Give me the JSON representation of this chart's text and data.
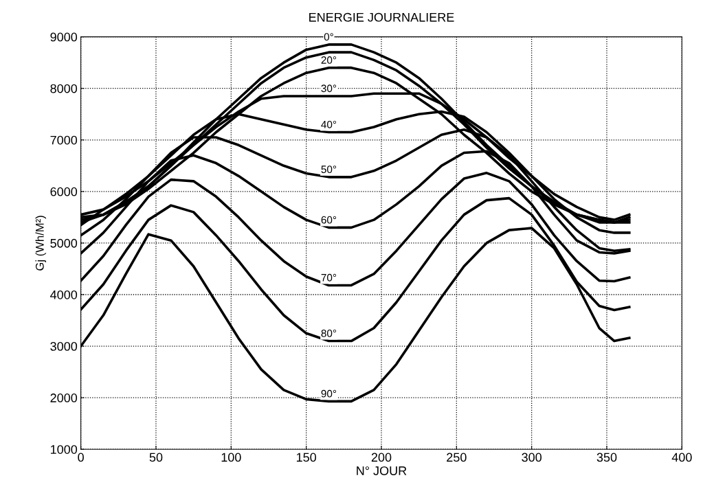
{
  "chart_data": {
    "type": "line",
    "title": "ENERGIE JOURNALIERE",
    "xlabel": "N° JOUR",
    "ylabel": "Gj (Wh/M²)",
    "x": [
      0,
      15,
      30,
      45,
      60,
      75,
      90,
      105,
      120,
      135,
      150,
      165,
      180,
      195,
      210,
      225,
      240,
      255,
      270,
      285,
      300,
      315,
      330,
      345,
      355,
      365
    ],
    "xlim": [
      0,
      400
    ],
    "xticks": [
      0,
      50,
      100,
      150,
      200,
      250,
      300,
      350,
      400
    ],
    "ylim": [
      1000,
      9000
    ],
    "yticks": [
      1000,
      2000,
      3000,
      4000,
      5000,
      6000,
      7000,
      8000,
      9000
    ],
    "grid": true,
    "legend": false,
    "marker": "none",
    "line_style": "solid",
    "series": [
      {
        "name": "0°",
        "color": "#000000",
        "values": [
          5400,
          5550,
          5800,
          6100,
          6500,
          6950,
          7400,
          7800,
          8200,
          8500,
          8750,
          8850,
          8850,
          8700,
          8500,
          8200,
          7800,
          7350,
          6900,
          6500,
          6100,
          5800,
          5550,
          5400,
          5400,
          5500
        ]
      },
      {
        "color": "#000000",
        "values": [
          5450,
          5550,
          5800,
          6100,
          6500,
          6900,
          7300,
          7700,
          8100,
          8400,
          8600,
          8700,
          8700,
          8550,
          8350,
          8050,
          7700,
          7300,
          6850,
          6450,
          6100,
          5750,
          5550,
          5450,
          5400,
          5450
        ]
      },
      {
        "name": "20°",
        "color": "#000000",
        "values": [
          5500,
          5550,
          5750,
          6050,
          6400,
          6750,
          7150,
          7500,
          7850,
          8100,
          8300,
          8400,
          8400,
          8300,
          8100,
          7800,
          7500,
          7100,
          6750,
          6350,
          6000,
          5750,
          5550,
          5450,
          5400,
          5400
        ]
      },
      {
        "name": "30°",
        "color": "#000000",
        "values": [
          5550,
          5650,
          5900,
          6200,
          6550,
          6900,
          7250,
          7550,
          7800,
          7850,
          7850,
          7850,
          7850,
          7900,
          7900,
          7900,
          7700,
          7400,
          7050,
          6650,
          6300,
          5950,
          5700,
          5500,
          5450,
          5550
        ]
      },
      {
        "name": "40°",
        "color": "#000000",
        "values": [
          5350,
          5650,
          5950,
          6300,
          6700,
          7100,
          7400,
          7500,
          7400,
          7300,
          7200,
          7150,
          7150,
          7250,
          7400,
          7500,
          7550,
          7450,
          7150,
          6750,
          6300,
          5850,
          5500,
          5250,
          5200,
          5200
        ]
      },
      {
        "name": "50°",
        "color": "#000000",
        "values": [
          5150,
          5450,
          5850,
          6300,
          6750,
          7050,
          7050,
          6900,
          6700,
          6500,
          6350,
          6280,
          6280,
          6400,
          6600,
          6850,
          7100,
          7200,
          7050,
          6700,
          6200,
          5700,
          5250,
          4900,
          4850,
          4880
        ]
      },
      {
        "name": "60°",
        "color": "#000000",
        "values": [
          4800,
          5200,
          5700,
          6200,
          6600,
          6700,
          6550,
          6300,
          6000,
          5700,
          5450,
          5300,
          5300,
          5450,
          5750,
          6100,
          6500,
          6750,
          6780,
          6550,
          6100,
          5550,
          5050,
          4820,
          4800,
          4850
        ]
      },
      {
        "name": "70°",
        "color": "#000000",
        "values": [
          4270,
          4750,
          5350,
          5900,
          6230,
          6200,
          5900,
          5500,
          5050,
          4650,
          4350,
          4180,
          4180,
          4400,
          4850,
          5350,
          5850,
          6250,
          6360,
          6200,
          5750,
          5150,
          4650,
          4270,
          4260,
          4330
        ]
      },
      {
        "name": "80°",
        "color": "#000000",
        "values": [
          3710,
          4200,
          4850,
          5450,
          5730,
          5600,
          5150,
          4650,
          4100,
          3600,
          3250,
          3100,
          3100,
          3350,
          3850,
          4450,
          5050,
          5550,
          5830,
          5870,
          5550,
          4950,
          4250,
          3780,
          3700,
          3760
        ]
      },
      {
        "name": "90°",
        "color": "#000000",
        "values": [
          3000,
          3600,
          4400,
          5170,
          5050,
          4550,
          3850,
          3150,
          2550,
          2150,
          1970,
          1930,
          1930,
          2150,
          2650,
          3300,
          3950,
          4550,
          5000,
          5250,
          5290,
          4900,
          4200,
          3350,
          3100,
          3160
        ]
      }
    ]
  }
}
